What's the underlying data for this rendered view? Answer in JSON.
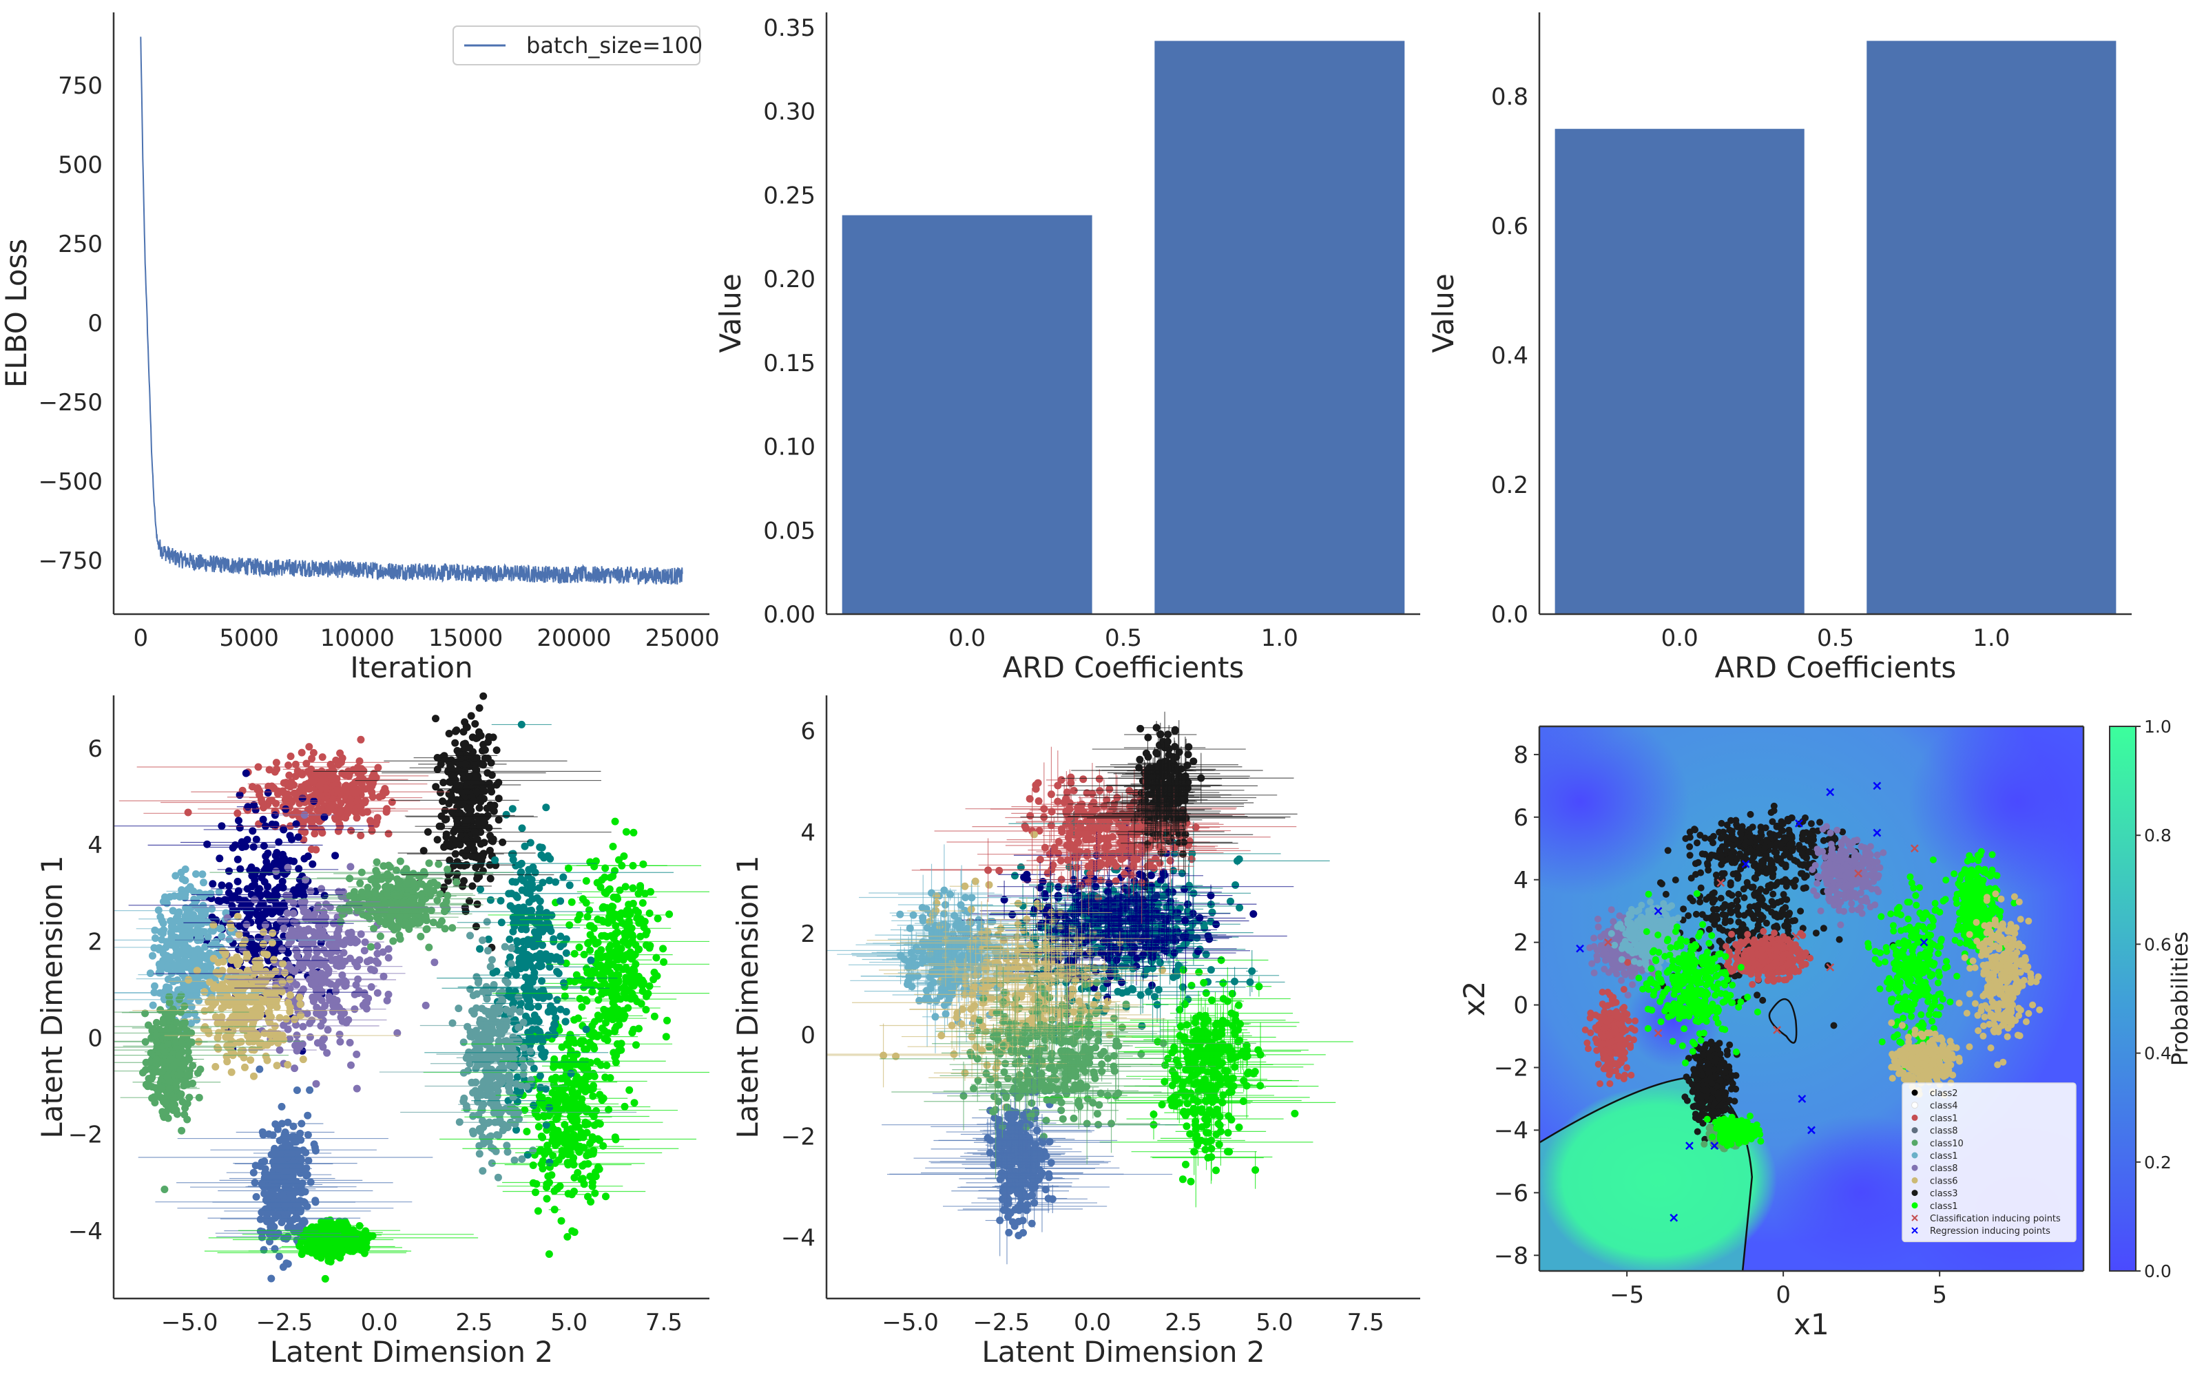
{
  "chart_data": [
    {
      "type": "line",
      "panel": "top-left",
      "xlabel": "Iteration",
      "ylabel": "ELBO Loss",
      "xlim": [
        -1250,
        26250
      ],
      "ylim": [
        -920,
        980
      ],
      "xticks": [
        0,
        5000,
        10000,
        15000,
        20000,
        25000
      ],
      "yticks": [
        -750,
        -500,
        -250,
        0,
        250,
        500,
        750
      ],
      "xtick_labels": [
        "0",
        "5000",
        "10000",
        "15000",
        "20000",
        "25000"
      ],
      "ytick_labels": [
        "−750",
        "−500",
        "−250",
        "0",
        "250",
        "500",
        "750"
      ],
      "series": [
        {
          "name": "batch_size=100",
          "color": "#4c72b0",
          "x": [
            0,
            100,
            200,
            300,
            400,
            500,
            600,
            700,
            800,
            1000,
            1500,
            2000,
            3000,
            5000,
            7500,
            10000,
            12500,
            15000,
            17500,
            20000,
            22500,
            25000
          ],
          "y": [
            900,
            500,
            200,
            0,
            -200,
            -400,
            -550,
            -650,
            -700,
            -720,
            -740,
            -750,
            -760,
            -770,
            -775,
            -780,
            -785,
            -790,
            -792,
            -795,
            -797,
            -800
          ]
        }
      ],
      "legend_position": "top-right",
      "grid": false
    },
    {
      "type": "bar",
      "panel": "top-middle",
      "xlabel": "ARD Coefficients",
      "ylabel": "Value",
      "categories": [
        0.0,
        1.0
      ],
      "values": [
        0.238,
        0.342
      ],
      "bar_width": 0.8,
      "xlim": [
        -0.45,
        1.45
      ],
      "ylim": [
        0,
        0.359
      ],
      "xticks": [
        0.0,
        0.5,
        1.0
      ],
      "yticks": [
        0.0,
        0.05,
        0.1,
        0.15,
        0.2,
        0.25,
        0.3,
        0.35
      ],
      "xtick_labels": [
        "0.0",
        "0.5",
        "1.0"
      ],
      "ytick_labels": [
        "0.00",
        "0.05",
        "0.10",
        "0.15",
        "0.20",
        "0.25",
        "0.30",
        "0.35"
      ],
      "color": "#4c72b0",
      "grid": false
    },
    {
      "type": "bar",
      "panel": "top-right",
      "xlabel": "ARD Coefficients",
      "ylabel": "Value",
      "categories": [
        0.0,
        1.0
      ],
      "values": [
        0.75,
        0.886
      ],
      "bar_width": 0.8,
      "xlim": [
        -0.45,
        1.45
      ],
      "ylim": [
        0,
        0.93
      ],
      "xticks": [
        0.0,
        0.5,
        1.0
      ],
      "yticks": [
        0.0,
        0.2,
        0.4,
        0.6,
        0.8
      ],
      "xtick_labels": [
        "0.0",
        "0.5",
        "1.0"
      ],
      "ytick_labels": [
        "0.0",
        "0.2",
        "0.4",
        "0.6",
        "0.8"
      ],
      "color": "#4c72b0",
      "grid": false
    },
    {
      "type": "scatter",
      "panel": "bottom-left",
      "xlabel": "Latent Dimension 2",
      "ylabel": "Latent Dimension 1",
      "xlim": [
        -7.0,
        8.7
      ],
      "ylim": [
        -5.4,
        7.1
      ],
      "xticks": [
        -5.0,
        -2.5,
        0.0,
        2.5,
        5.0,
        7.5
      ],
      "yticks": [
        -4,
        -2,
        0,
        2,
        4,
        6
      ],
      "xtick_labels": [
        "−5.0",
        "−2.5",
        "0.0",
        "2.5",
        "5.0",
        "7.5"
      ],
      "ytick_labels": [
        "−4",
        "−2",
        "0",
        "2",
        "4",
        "6"
      ],
      "error_bars": "horizontal",
      "clusters": [
        {
          "color": "#c44e52",
          "center": [
            -1.5,
            5.0
          ],
          "spread": [
            1.6,
            0.7
          ]
        },
        {
          "color": "#1a1a1a",
          "center": [
            2.3,
            4.8
          ],
          "spread": [
            0.7,
            1.6
          ]
        },
        {
          "color": "#00e600",
          "center": [
            6.2,
            1.5
          ],
          "spread": [
            0.9,
            2.0
          ]
        },
        {
          "color": "#00e600",
          "center": [
            5.0,
            -1.5
          ],
          "spread": [
            0.9,
            1.8
          ]
        },
        {
          "color": "#008080",
          "center": [
            4.0,
            1.5
          ],
          "spread": [
            0.8,
            2.4
          ]
        },
        {
          "color": "#5f9ea0",
          "center": [
            3.0,
            -0.5
          ],
          "spread": [
            0.7,
            1.6
          ]
        },
        {
          "color": "#000080",
          "center": [
            -3.0,
            2.5
          ],
          "spread": [
            1.2,
            1.8
          ]
        },
        {
          "color": "#6ab0c8",
          "center": [
            -5.0,
            1.8
          ],
          "spread": [
            0.8,
            1.2
          ]
        },
        {
          "color": "#55a868",
          "center": [
            -5.5,
            -0.5
          ],
          "spread": [
            0.5,
            1.0
          ]
        },
        {
          "color": "#4c72b0",
          "center": [
            -2.5,
            -3.0
          ],
          "spread": [
            0.6,
            1.2
          ]
        },
        {
          "color": "#8172b2",
          "center": [
            -1.5,
            1.5
          ],
          "spread": [
            1.5,
            1.5
          ]
        },
        {
          "color": "#ccb974",
          "center": [
            -3.5,
            0.7
          ],
          "spread": [
            1.0,
            1.0
          ]
        },
        {
          "color": "#55a868",
          "center": [
            0.5,
            2.8
          ],
          "spread": [
            1.0,
            0.6
          ]
        },
        {
          "color": "#00e600",
          "center": [
            -1.2,
            -4.2
          ],
          "spread": [
            0.7,
            0.3
          ]
        }
      ]
    },
    {
      "type": "scatter",
      "panel": "bottom-middle",
      "xlabel": "Latent Dimension 2",
      "ylabel": "Latent Dimension 1",
      "xlim": [
        -7.3,
        9.0
      ],
      "ylim": [
        -5.2,
        6.7
      ],
      "xticks": [
        -5.0,
        -2.5,
        0.0,
        2.5,
        5.0,
        7.5
      ],
      "yticks": [
        -4,
        -2,
        0,
        2,
        4,
        6
      ],
      "xtick_labels": [
        "−5.0",
        "−2.5",
        "0.0",
        "2.5",
        "5.0",
        "7.5"
      ],
      "ytick_labels": [
        "−4",
        "−2",
        "0",
        "2",
        "4",
        "6"
      ],
      "error_bars": "both",
      "clusters": [
        {
          "color": "#008080",
          "center": [
            1.0,
            2.0
          ],
          "spread": [
            2.2,
            1.3
          ]
        },
        {
          "color": "#000080",
          "center": [
            0.5,
            2.2
          ],
          "spread": [
            2.0,
            1.0
          ]
        },
        {
          "color": "#c44e52",
          "center": [
            0.5,
            4.0
          ],
          "spread": [
            1.8,
            0.8
          ]
        },
        {
          "color": "#1a1a1a",
          "center": [
            2.0,
            4.8
          ],
          "spread": [
            0.6,
            0.8
          ]
        },
        {
          "color": "#00e600",
          "center": [
            3.2,
            -0.8
          ],
          "spread": [
            1.0,
            1.5
          ]
        },
        {
          "color": "#6ab0c8",
          "center": [
            -4.0,
            1.5
          ],
          "spread": [
            0.9,
            1.0
          ]
        },
        {
          "color": "#4c72b0",
          "center": [
            -2.0,
            -2.5
          ],
          "spread": [
            0.6,
            1.0
          ]
        },
        {
          "color": "#ccb974",
          "center": [
            -2.0,
            1.0
          ],
          "spread": [
            2.0,
            1.5
          ]
        },
        {
          "color": "#55a868",
          "center": [
            -1.0,
            -0.5
          ],
          "spread": [
            1.8,
            1.0
          ]
        }
      ]
    },
    {
      "type": "heatmap",
      "panel": "bottom-right",
      "xlabel": "x1",
      "ylabel": "x2",
      "xlim": [
        -7.8,
        9.6
      ],
      "ylim": [
        -8.5,
        8.9
      ],
      "xticks": [
        -5,
        0,
        5
      ],
      "yticks": [
        -8,
        -6,
        -4,
        -2,
        0,
        2,
        4,
        6,
        8
      ],
      "xtick_labels": [
        "−5",
        "0",
        "5"
      ],
      "ytick_labels": [
        "−8",
        "−6",
        "−4",
        "−2",
        "0",
        "2",
        "4",
        "6",
        "8"
      ],
      "colorbar": {
        "label": "Probabilities",
        "range": [
          0.0,
          1.0
        ],
        "ticks": [
          0.0,
          0.2,
          0.4,
          0.6,
          0.8,
          1.0
        ],
        "tick_labels": [
          "0.0",
          "0.2",
          "0.4",
          "0.6",
          "0.8",
          "1.0"
        ],
        "colors": [
          "#4a4aff",
          "#40a0d8",
          "#3cff9c"
        ]
      },
      "legend_position": "lower-right",
      "legend": [
        {
          "label": "class2",
          "color": "#000000",
          "marker": "dot"
        },
        {
          "label": "class4",
          "color": "#ffffff",
          "marker": "dot"
        },
        {
          "label": "class1",
          "color": "#c44e52",
          "marker": "dot"
        },
        {
          "label": "class8",
          "color": "#5f6f80",
          "marker": "dot"
        },
        {
          "label": "class10",
          "color": "#55a868",
          "marker": "dot"
        },
        {
          "label": "class1",
          "color": "#6ab0c8",
          "marker": "dot"
        },
        {
          "label": "class8",
          "color": "#8172b2",
          "marker": "dot"
        },
        {
          "label": "class6",
          "color": "#ccb974",
          "marker": "dot"
        },
        {
          "label": "class3",
          "color": "#1a1a1a",
          "marker": "dot"
        },
        {
          "label": "class1",
          "color": "#00ff00",
          "marker": "dot"
        },
        {
          "label": "Classification inducing points",
          "color": "#c44e52",
          "marker": "x"
        },
        {
          "label": "Regression inducing points",
          "color": "#0000ff",
          "marker": "x"
        }
      ],
      "clusters": [
        {
          "color": "#1a1a1a",
          "center": [
            -1.2,
            3.0
          ],
          "spread": [
            2.0,
            2.2
          ]
        },
        {
          "color": "#1a1a1a",
          "center": [
            -0.5,
            5.0
          ],
          "spread": [
            2.0,
            0.8
          ]
        },
        {
          "color": "#1a1a1a",
          "center": [
            -2.3,
            -2.5
          ],
          "spread": [
            0.6,
            1.2
          ]
        },
        {
          "color": "#8172b2",
          "center": [
            2.0,
            4.2
          ],
          "spread": [
            0.9,
            0.9
          ]
        },
        {
          "color": "#8172b2",
          "center": [
            -5.0,
            1.8
          ],
          "spread": [
            0.8,
            0.8
          ]
        },
        {
          "color": "#00ff00",
          "center": [
            4.2,
            1.0
          ],
          "spread": [
            0.9,
            2.0
          ]
        },
        {
          "color": "#00ff00",
          "center": [
            6.2,
            3.2
          ],
          "spread": [
            0.6,
            1.2
          ]
        },
        {
          "color": "#ccb974",
          "center": [
            7.0,
            1.0
          ],
          "spread": [
            0.8,
            1.8
          ]
        },
        {
          "color": "#ccb974",
          "center": [
            4.5,
            -1.8
          ],
          "spread": [
            0.8,
            0.7
          ]
        },
        {
          "color": "#c44e52",
          "center": [
            -5.5,
            -1.0
          ],
          "spread": [
            0.5,
            1.0
          ]
        },
        {
          "color": "#c44e52",
          "center": [
            -0.5,
            1.5
          ],
          "spread": [
            1.0,
            0.6
          ]
        },
        {
          "color": "#6ab0c8",
          "center": [
            -4.2,
            2.2
          ],
          "spread": [
            0.8,
            0.8
          ]
        },
        {
          "color": "#55a868",
          "center": [
            -1.8,
            -4.2
          ],
          "spread": [
            0.4,
            0.3
          ]
        },
        {
          "color": "#00ff00",
          "center": [
            -1.5,
            -4.0
          ],
          "spread": [
            0.5,
            0.3
          ]
        },
        {
          "color": "#00ff00",
          "center": [
            -3.0,
            0.6
          ],
          "spread": [
            1.2,
            1.5
          ]
        }
      ],
      "regression_inducing_points": [
        [
          -6.5,
          1.8
        ],
        [
          -4.0,
          3.0
        ],
        [
          -3.0,
          -4.5
        ],
        [
          -1.2,
          4.5
        ],
        [
          0.5,
          5.8
        ],
        [
          1.5,
          6.8
        ],
        [
          3.0,
          7.0
        ],
        [
          4.5,
          2.0
        ],
        [
          3.0,
          5.5
        ],
        [
          -2.2,
          -4.5
        ],
        [
          0.6,
          -3.0
        ],
        [
          -3.5,
          -6.8
        ],
        [
          0.9,
          -4.0
        ]
      ],
      "classification_inducing_points": [
        [
          -4.0,
          -0.9
        ],
        [
          -5.6,
          2.0
        ],
        [
          -2.0,
          3.9
        ],
        [
          2.4,
          4.2
        ],
        [
          4.2,
          5.0
        ],
        [
          1.5,
          1.2
        ],
        [
          -0.2,
          -0.8
        ],
        [
          0.4,
          2.2
        ]
      ]
    }
  ]
}
